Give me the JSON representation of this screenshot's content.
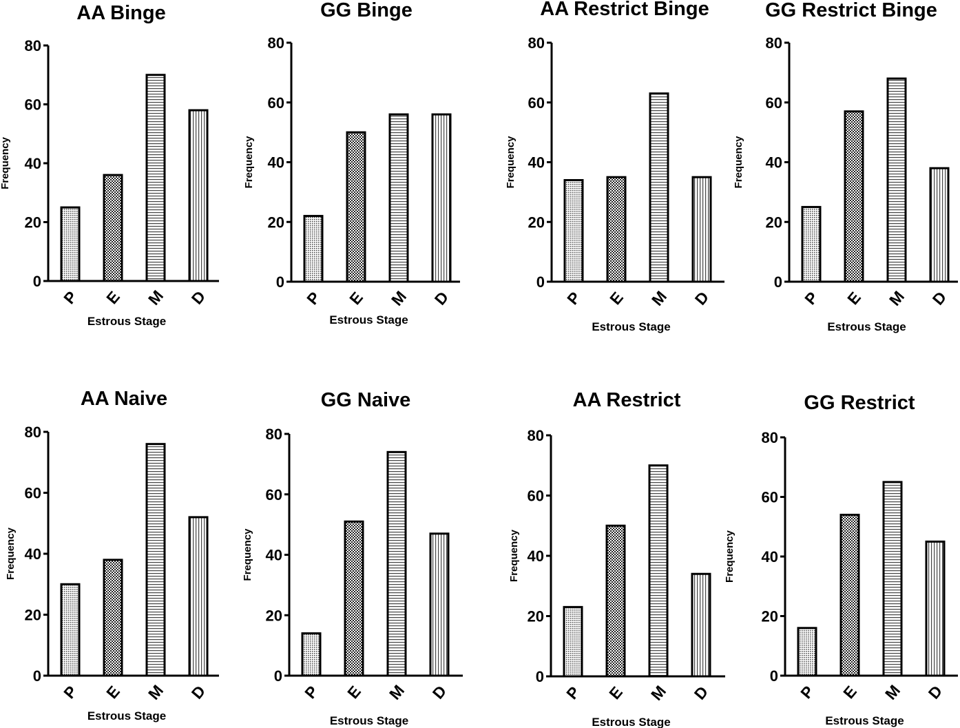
{
  "chart_data": [
    {
      "type": "bar",
      "title": "AA Binge",
      "categories": [
        "P",
        "E",
        "M",
        "D"
      ],
      "values": [
        25,
        36,
        70,
        58
      ],
      "xlabel": "Estrous Stage",
      "ylabel": "Frequency",
      "ylim": [
        0,
        80
      ],
      "yticks": [
        0,
        20,
        40,
        60,
        80
      ]
    },
    {
      "type": "bar",
      "title": "GG Binge",
      "categories": [
        "P",
        "E",
        "M",
        "D"
      ],
      "values": [
        22,
        50,
        56,
        56
      ],
      "xlabel": "Estrous Stage",
      "ylabel": "Frequency",
      "ylim": [
        0,
        80
      ],
      "yticks": [
        0,
        20,
        40,
        60,
        80
      ]
    },
    {
      "type": "bar",
      "title": "AA Restrict Binge",
      "categories": [
        "P",
        "E",
        "M",
        "D"
      ],
      "values": [
        34,
        35,
        63,
        35
      ],
      "xlabel": "Estrous Stage",
      "ylabel": "Frequency",
      "ylim": [
        0,
        80
      ],
      "yticks": [
        0,
        20,
        40,
        60,
        80
      ]
    },
    {
      "type": "bar",
      "title": "GG Restrict Binge",
      "categories": [
        "P",
        "E",
        "M",
        "D"
      ],
      "values": [
        25,
        57,
        68,
        38
      ],
      "xlabel": "Estrous Stage",
      "ylabel": "Frequency",
      "ylim": [
        0,
        80
      ],
      "yticks": [
        0,
        20,
        40,
        60,
        80
      ]
    },
    {
      "type": "bar",
      "title": "AA Naive",
      "categories": [
        "P",
        "E",
        "M",
        "D"
      ],
      "values": [
        30,
        38,
        76,
        52
      ],
      "xlabel": "Estrous Stage",
      "ylabel": "Frequency",
      "ylim": [
        0,
        80
      ],
      "yticks": [
        0,
        20,
        40,
        60,
        80
      ]
    },
    {
      "type": "bar",
      "title": "GG Naive",
      "categories": [
        "P",
        "E",
        "M",
        "D"
      ],
      "values": [
        14,
        51,
        74,
        47
      ],
      "xlabel": "Estrous Stage",
      "ylabel": "Frequency",
      "ylim": [
        0,
        80
      ],
      "yticks": [
        0,
        20,
        40,
        60,
        80
      ]
    },
    {
      "type": "bar",
      "title": "AA Restrict",
      "categories": [
        "P",
        "E",
        "M",
        "D"
      ],
      "values": [
        23,
        50,
        70,
        34
      ],
      "xlabel": "Estrous Stage",
      "ylabel": "Frequency",
      "ylim": [
        0,
        80
      ],
      "yticks": [
        0,
        20,
        40,
        60,
        80
      ]
    },
    {
      "type": "bar",
      "title": "GG Restrict",
      "categories": [
        "P",
        "E",
        "M",
        "D"
      ],
      "values": [
        16,
        54,
        65,
        45
      ],
      "xlabel": "Estrous Stage",
      "ylabel": "Frequency",
      "ylim": [
        0,
        80
      ],
      "yticks": [
        0,
        20,
        40,
        60,
        80
      ]
    }
  ],
  "bar_patterns": [
    "fine-dots",
    "checker",
    "horizontal-lines",
    "vertical-lines"
  ]
}
